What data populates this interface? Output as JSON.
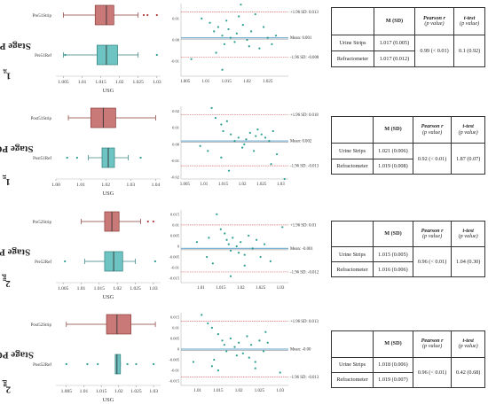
{
  "colors": {
    "strip_fill": "#c97a78",
    "strip_stroke": "#8a3b39",
    "ref_fill": "#6ec4c2",
    "ref_stroke": "#2f7f7d",
    "point": "#2a9d8f",
    "limit_line": "#d96b6b",
    "mean_line": "#7fb3d5"
  },
  "panels": [
    {
      "stage_ordinal": "1",
      "stage_suffix": "st",
      "stage_rest": " Stage PRE",
      "chart_data": {
        "boxplot": {
          "type": "boxplot",
          "xlabel": "USG",
          "xlim": [
            1.003,
            1.031
          ],
          "ticks": [
            "1.005",
            "1.01",
            "1.015",
            "1.02",
            "1.025",
            "1.03"
          ],
          "tick_values": [
            1.005,
            1.01,
            1.015,
            1.02,
            1.025,
            1.03
          ],
          "series": [
            {
              "name": "Pre51Strip",
              "min": 1.005,
              "q1": 1.0135,
              "median": 1.0165,
              "q3": 1.0185,
              "max": 1.025,
              "outliers": [
                1.0265,
                1.0275,
                1.03
              ]
            },
            {
              "name": "Pre51Ref",
              "min": 1.005,
              "q1": 1.014,
              "median": 1.0165,
              "q3": 1.0195,
              "max": 1.025,
              "outliers": [
                1.0055,
                1.03
              ]
            }
          ]
        },
        "bland_altman": {
          "type": "scatter",
          "xlim": [
            1.004,
            1.03
          ],
          "ylim": [
            -0.017,
            0.017
          ],
          "ticks_x": [
            "1.005",
            "1.01",
            "1.015",
            "1.02",
            "1.025"
          ],
          "tick_values_x": [
            1.005,
            1.01,
            1.015,
            1.02,
            1.025
          ],
          "ticks_y": [
            "0.01",
            "0.00",
            "-0.01"
          ],
          "tick_values_y": [
            0.01,
            0.0,
            -0.01
          ],
          "upper_label": "+1.96 SD: 0.013",
          "upper": 0.013,
          "mean_label": "Mean: 0.001",
          "mean": 0.001,
          "lower_label": "-1.96 SD: -0.008",
          "lower": -0.008,
          "points": [
            [
              1.009,
              0.01
            ],
            [
              1.011,
              0.008
            ],
            [
              1.012,
              0.004
            ],
            [
              1.013,
              0.006
            ],
            [
              1.014,
              0.002
            ],
            [
              1.0145,
              -0.002
            ],
            [
              1.015,
              0.009
            ],
            [
              1.0155,
              0.005
            ],
            [
              1.016,
              0.001
            ],
            [
              1.017,
              -0.001
            ],
            [
              1.0175,
              0.003
            ],
            [
              1.018,
              0.011
            ],
            [
              1.019,
              0.007
            ],
            [
              1.02,
              0.0
            ],
            [
              1.0205,
              -0.003
            ],
            [
              1.021,
              0.004
            ],
            [
              1.022,
              0.012
            ],
            [
              1.023,
              -0.004
            ],
            [
              1.024,
              0.006
            ],
            [
              1.025,
              0.001
            ],
            [
              1.026,
              -0.002
            ],
            [
              1.027,
              0.002
            ],
            [
              1.014,
              -0.014
            ],
            [
              1.0125,
              -0.006
            ],
            [
              1.0065,
              -0.009
            ],
            [
              1.0185,
              0.0165
            ]
          ]
        }
      },
      "table": {
        "h1": "M (SD)",
        "h2a": "Pearson r",
        "h2b": "(p value)",
        "h3a": "t-test",
        "h3b": "(p value)",
        "rows": [
          {
            "label": "Urine Strips",
            "msd": "1.017 (0.005)"
          },
          {
            "label": "Refractometer",
            "msd": "1.017 (0.012)"
          }
        ],
        "pearson": "0.99 (< 0.01)",
        "ttest": "0.1 (0.92)"
      }
    },
    {
      "stage_ordinal": "1",
      "stage_suffix": "st",
      "stage_rest": " Stage POST",
      "chart_data": {
        "boxplot": {
          "type": "boxplot",
          "xlabel": "USG",
          "xlim": [
            1.0,
            1.042
          ],
          "ticks": [
            "1.00",
            "1.01",
            "1.02",
            "1.03",
            "1.04"
          ],
          "tick_values": [
            1.0,
            1.01,
            1.02,
            1.03,
            1.04
          ],
          "series": [
            {
              "name": "Post51Strip",
              "min": 1.005,
              "q1": 1.014,
              "median": 1.019,
              "q3": 1.024,
              "max": 1.04,
              "outliers": []
            },
            {
              "name": "Post51Ref",
              "min": 1.013,
              "q1": 1.0185,
              "median": 1.021,
              "q3": 1.0235,
              "max": 1.029,
              "outliers": [
                1.0045,
                1.0085,
                1.034
              ]
            }
          ]
        },
        "bland_altman": {
          "type": "scatter",
          "xlim": [
            1.004,
            1.032
          ],
          "ylim": [
            -0.021,
            0.023
          ],
          "ticks_x": [
            "1.005",
            "1.01",
            "1.015",
            "1.02",
            "1.025",
            "1.03"
          ],
          "tick_values_x": [
            1.005,
            1.01,
            1.015,
            1.02,
            1.025,
            1.03
          ],
          "ticks_y": [
            "0.02",
            "0.01",
            "0.00",
            "-0.01",
            "-0.02"
          ],
          "tick_values_y": [
            0.02,
            0.01,
            0.0,
            -0.01,
            -0.02
          ],
          "upper_label": "+1.96 SD: 0.018",
          "upper": 0.018,
          "mean_label": "Mean: 0.002",
          "mean": 0.002,
          "lower_label": "-1.96 SD: -0.013",
          "lower": -0.013,
          "points": [
            [
              1.012,
              0.022
            ],
            [
              1.013,
              0.016
            ],
            [
              1.0145,
              0.012
            ],
            [
              1.015,
              0.008
            ],
            [
              1.016,
              0.014
            ],
            [
              1.017,
              0.006
            ],
            [
              1.018,
              0.002
            ],
            [
              1.019,
              0.004
            ],
            [
              1.02,
              -0.002
            ],
            [
              1.0205,
              0.0
            ],
            [
              1.021,
              0.003
            ],
            [
              1.022,
              0.007
            ],
            [
              1.023,
              -0.004
            ],
            [
              1.0235,
              0.005
            ],
            [
              1.024,
              0.009
            ],
            [
              1.025,
              0.006
            ],
            [
              1.026,
              0.004
            ],
            [
              1.027,
              0.002
            ],
            [
              1.028,
              0.008
            ],
            [
              1.029,
              -0.006
            ],
            [
              1.0145,
              -0.008
            ],
            [
              1.011,
              -0.004
            ],
            [
              1.009,
              -0.001
            ],
            [
              1.0165,
              -0.016
            ],
            [
              1.0275,
              -0.012
            ],
            [
              1.031,
              -0.021
            ]
          ]
        }
      },
      "table": {
        "h1": "M (SD)",
        "h2a": "Pearson r",
        "h2b": "(p value)",
        "h3a": "t-test",
        "h3b": "(p value)",
        "rows": [
          {
            "label": "Urine Strips",
            "msd": "1.021 (0.006)"
          },
          {
            "label": "Refractometer",
            "msd": "1.019 (0.008)"
          }
        ],
        "pearson": "0.92 (< 0.01)",
        "ttest": "1.87 (0.07)"
      }
    },
    {
      "stage_ordinal": "2",
      "stage_suffix": "nd",
      "stage_rest": " Stage PRE",
      "chart_data": {
        "boxplot": {
          "type": "boxplot",
          "xlabel": "USG",
          "xlim": [
            1.003,
            1.032
          ],
          "ticks": [
            "1.005",
            "1.01",
            "1.015",
            "1.02",
            "1.025",
            "1.03"
          ],
          "tick_values": [
            1.005,
            1.01,
            1.015,
            1.02,
            1.025,
            1.03
          ],
          "series": [
            {
              "name": "Pre52Strip",
              "min": 1.01,
              "q1": 1.0165,
              "median": 1.0185,
              "q3": 1.0205,
              "max": 1.0265,
              "outliers": [
                1.0285,
                1.03
              ]
            },
            {
              "name": "Pre52Ref",
              "min": 1.011,
              "q1": 1.0165,
              "median": 1.019,
              "q3": 1.0215,
              "max": 1.025,
              "outliers": [
                1.0055,
                1.0305
              ]
            }
          ]
        },
        "bland_altman": {
          "type": "scatter",
          "xlim": [
            1.005,
            1.032
          ],
          "ylim": [
            -0.017,
            0.017
          ],
          "ticks_x": [
            "1.01",
            "1.015",
            "1.02",
            "1.025",
            "1.03"
          ],
          "tick_values_x": [
            1.01,
            1.015,
            1.02,
            1.025,
            1.03
          ],
          "ticks_y": [
            "0.015",
            "0.01",
            "0.005",
            "0",
            "-0.005",
            "-0.01",
            "-0.015"
          ],
          "tick_values_y": [
            0.015,
            0.01,
            0.005,
            0.0,
            -0.005,
            -0.01,
            -0.015
          ],
          "upper_label": "+1.96 SD: 0.01",
          "upper": 0.01,
          "mean_label": "Mean: -0.001",
          "mean": -0.001,
          "lower_label": "-1.96 SD: -0.012",
          "lower": -0.012,
          "points": [
            [
              1.014,
              0.015
            ],
            [
              1.015,
              0.008
            ],
            [
              1.016,
              0.006
            ],
            [
              1.0165,
              0.003
            ],
            [
              1.017,
              0.001
            ],
            [
              1.0175,
              -0.002
            ],
            [
              1.018,
              0.004
            ],
            [
              1.019,
              0.0
            ],
            [
              1.0195,
              -0.003
            ],
            [
              1.02,
              0.002
            ],
            [
              1.021,
              -0.004
            ],
            [
              1.022,
              0.005
            ],
            [
              1.023,
              -0.001
            ],
            [
              1.024,
              0.003
            ],
            [
              1.025,
              -0.005
            ],
            [
              1.026,
              0.001
            ],
            [
              1.0275,
              -0.007
            ],
            [
              1.012,
              0.004
            ],
            [
              1.0115,
              -0.005
            ],
            [
              1.013,
              -0.008
            ],
            [
              1.0175,
              -0.014
            ],
            [
              1.021,
              -0.009
            ],
            [
              1.009,
              0.002
            ],
            [
              1.0305,
              0.009
            ]
          ]
        }
      },
      "table": {
        "h1": "M (SD)",
        "h2a": "Pearson r",
        "h2b": "(p value)",
        "h3a": "t-test",
        "h3b": "(p value)",
        "rows": [
          {
            "label": "Urine Strips",
            "msd": "1.015 (0.005)"
          },
          {
            "label": "Refractometer",
            "msd": "1.016 (0.006)"
          }
        ],
        "pearson": "0.96 (< 0.01)",
        "ttest": "1.04 (0.30)"
      }
    },
    {
      "stage_ordinal": "2",
      "stage_suffix": "nd",
      "stage_rest": " Stage POST",
      "chart_data": {
        "boxplot": {
          "type": "boxplot",
          "xlabel": "USG",
          "xlim": [
            1.002,
            1.032
          ],
          "ticks": [
            "1.005",
            "1.01",
            "1.015",
            "1.02",
            "1.025",
            "1.03"
          ],
          "tick_values": [
            1.005,
            1.01,
            1.015,
            1.02,
            1.025,
            1.03
          ],
          "series": [
            {
              "name": "Post52Strip",
              "min": 1.005,
              "q1": 1.0165,
              "median": 1.0195,
              "q3": 1.0235,
              "max": 1.0305,
              "outliers": []
            },
            {
              "name": "Post52Ref",
              "min": 1.019,
              "q1": 1.019,
              "median": 1.0195,
              "q3": 1.0205,
              "max": 1.0205,
              "outliers": [
                1.005,
                1.011,
                1.014,
                1.0225,
                1.025,
                1.03
              ]
            }
          ]
        },
        "bland_altman": {
          "type": "scatter",
          "xlim": [
            1.006,
            1.032
          ],
          "ylim": [
            -0.017,
            0.017
          ],
          "ticks_x": [
            "1.01",
            "1.015",
            "1.02",
            "1.025",
            "1.03"
          ],
          "tick_values_x": [
            1.01,
            1.015,
            1.02,
            1.025,
            1.03
          ],
          "ticks_y": [
            "0.015",
            "0.01",
            "0.005",
            "0",
            "-0.005",
            "-0.01",
            "-0.015"
          ],
          "tick_values_y": [
            0.015,
            0.01,
            0.005,
            0.0,
            -0.005,
            -0.01,
            -0.015
          ],
          "upper_label": "+1.96 SD: 0.013",
          "upper": 0.013,
          "mean_label": "Mean: -0.00",
          "mean": 0.0,
          "lower_label": "-1.96 SD: -0.013",
          "lower": -0.013,
          "points": [
            [
              1.011,
              0.016
            ],
            [
              1.0125,
              0.012
            ],
            [
              1.0135,
              0.01
            ],
            [
              1.015,
              0.007
            ],
            [
              1.016,
              0.004
            ],
            [
              1.0165,
              0.002
            ],
            [
              1.017,
              -0.001
            ],
            [
              1.018,
              0.005
            ],
            [
              1.019,
              0.001
            ],
            [
              1.0195,
              -0.003
            ],
            [
              1.02,
              0.003
            ],
            [
              1.021,
              -0.002
            ],
            [
              1.022,
              0.006
            ],
            [
              1.0225,
              -0.004
            ],
            [
              1.023,
              0.002
            ],
            [
              1.024,
              -0.006
            ],
            [
              1.025,
              0.004
            ],
            [
              1.026,
              -0.001
            ],
            [
              1.027,
              0.003
            ],
            [
              1.014,
              -0.005
            ],
            [
              1.0135,
              -0.008
            ],
            [
              1.015,
              -0.01
            ],
            [
              1.009,
              -0.006
            ],
            [
              1.024,
              -0.009
            ],
            [
              1.03,
              -0.011
            ],
            [
              1.0265,
              0.008
            ]
          ]
        }
      },
      "table": {
        "h1": "M (SD)",
        "h2a": "Pearson r",
        "h2b": "(p value)",
        "h3a": "t-test",
        "h3b": "(p value)",
        "rows": [
          {
            "label": "Urine Strips",
            "msd": "1.018 (0.006)"
          },
          {
            "label": "Refractometer",
            "msd": "1.019 (0.007)"
          }
        ],
        "pearson": "0.96 (< 0.01)",
        "ttest": "0.42 (0.68)"
      }
    }
  ]
}
